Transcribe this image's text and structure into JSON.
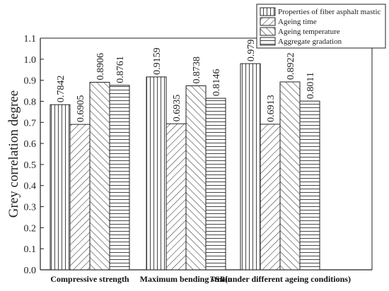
{
  "chart_data": {
    "type": "bar",
    "ylabel": "Grey correlation degree",
    "ylim": [
      0,
      1.1
    ],
    "yticks": [
      "0.0",
      "0.1",
      "0.2",
      "0.3",
      "0.4",
      "0.5",
      "0.6",
      "0.7",
      "0.8",
      "0.9",
      "1.0",
      "1.1"
    ],
    "categories": [
      {
        "pre": "Compressive strength",
        "ital": "",
        "post": ""
      },
      {
        "pre": "Maximum bending strain",
        "ital": "",
        "post": ""
      },
      {
        "pre": "",
        "ital": "TSR",
        "post": "(under different ageing conditions)"
      }
    ],
    "series": [
      {
        "name": "Properties of fiber asphalt mastic",
        "pattern": "vertical",
        "values": [
          0.7842,
          0.9159,
          0.979
        ],
        "labels": [
          "0.7842",
          "0.9159",
          "0.979"
        ]
      },
      {
        "name": "Ageing time",
        "pattern": "diag-back",
        "values": [
          0.6905,
          0.6935,
          0.6913
        ],
        "labels": [
          "0.6905",
          "0.6935",
          "0.6913"
        ]
      },
      {
        "name": "Ageing temperature",
        "pattern": "diag-fwd",
        "values": [
          0.8906,
          0.8738,
          0.8922
        ],
        "labels": [
          "0.8906",
          "0.8738",
          "0.8922"
        ]
      },
      {
        "name": "Aggregate gradation",
        "pattern": "horizontal",
        "values": [
          0.8761,
          0.8146,
          0.8011
        ],
        "labels": [
          "0.8761",
          "0.8146",
          "0.8011"
        ]
      }
    ],
    "legend_position": "top-right",
    "grid": false
  }
}
